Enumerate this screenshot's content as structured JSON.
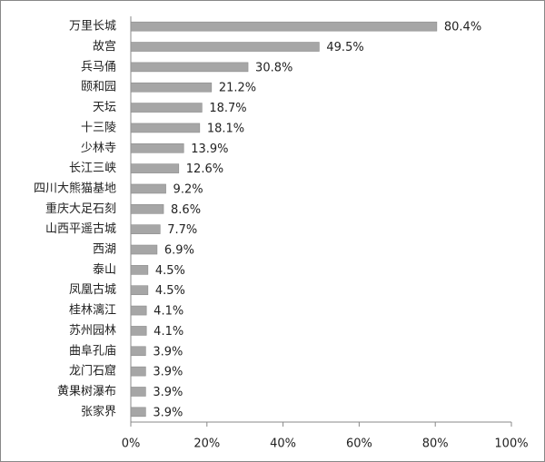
{
  "chart_data": {
    "type": "bar",
    "orientation": "horizontal",
    "categories": [
      "万里长城",
      "故宫",
      "兵马俑",
      "颐和园",
      "天坛",
      "十三陵",
      "少林寺",
      "长江三峡",
      "四川大熊猫基地",
      "重庆大足石刻",
      "山西平遥古城",
      "西湖",
      "泰山",
      "凤凰古城",
      "桂林漓江",
      "苏州园林",
      "曲阜孔庙",
      "龙门石窟",
      "黄果树瀑布",
      "张家界"
    ],
    "values": [
      80.4,
      49.5,
      30.8,
      21.2,
      18.7,
      18.1,
      13.9,
      12.6,
      9.2,
      8.6,
      7.7,
      6.9,
      4.5,
      4.5,
      4.1,
      4.1,
      3.9,
      3.9,
      3.9,
      3.9
    ],
    "value_labels": [
      "80.4%",
      "49.5%",
      "30.8%",
      "21.2%",
      "18.7%",
      "18.1%",
      "13.9%",
      "12.6%",
      "9.2%",
      "8.6%",
      "7.7%",
      "6.9%",
      "4.5%",
      "4.5%",
      "4.1%",
      "4.1%",
      "3.9%",
      "3.9%",
      "3.9%",
      "3.9%"
    ],
    "color": "#a6a6a6",
    "xlim": [
      0,
      100
    ],
    "xticks": [
      {
        "value": 0,
        "label": "0%"
      },
      {
        "value": 20,
        "label": "20%"
      },
      {
        "value": 40,
        "label": "40%"
      },
      {
        "value": 60,
        "label": "60%"
      },
      {
        "value": 80,
        "label": "80%"
      },
      {
        "value": 100,
        "label": "100%"
      }
    ],
    "grid": false
  }
}
